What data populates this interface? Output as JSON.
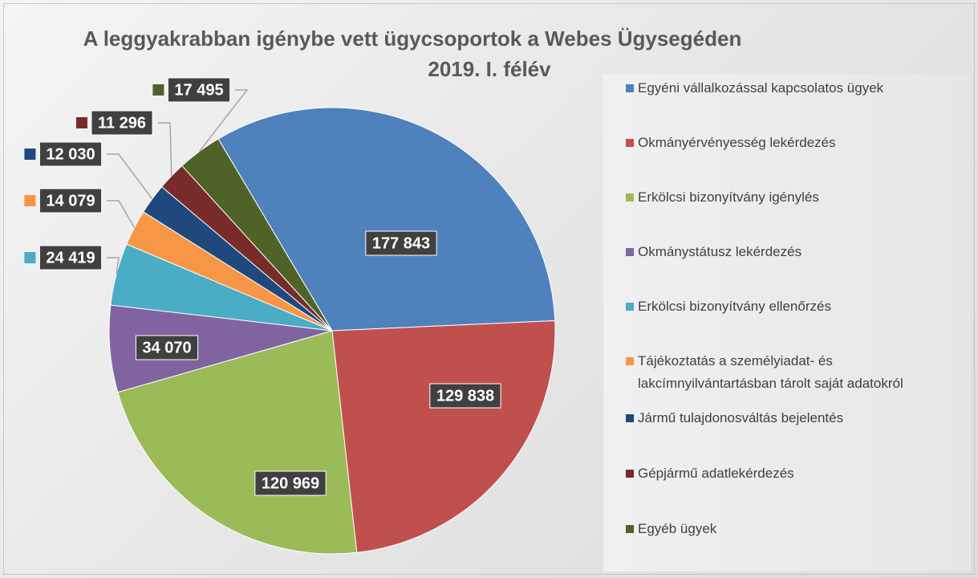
{
  "chart_data": {
    "type": "pie",
    "title": [
      "A leggyakrabban igénybe vett ügycsoportok a Webes Ügysegéden",
      "2019. I. félév"
    ],
    "categories": [
      "Egyéni vállalkozással kapcsolatos ügyek",
      "Okmányérvényesség lekérdezés",
      "Erkölcsi bizonyítvány igénylés",
      "Okmánystátusz lekérdezés",
      "Erkölcsi bizonyítvány ellenőrzés",
      "Tájékoztatás a személyiadat- és lakcímnyilvántartásban tárolt saját adatokról",
      "Jármű tulajdonosváltás bejelentés",
      "Gépjármű adatlekérdezés",
      "Egyéb ügyek"
    ],
    "values": [
      177843,
      129838,
      120969,
      34070,
      24419,
      14079,
      12030,
      11296,
      17495
    ],
    "value_labels": [
      "177 843",
      "129 838",
      "120 969",
      "34 070",
      "24 419",
      "14 079",
      "12 030",
      "11 296",
      "17 495"
    ],
    "colors": [
      "#4f81bd",
      "#c0504d",
      "#9bbb59",
      "#8064a2",
      "#4bacc6",
      "#f79646",
      "#1f497d",
      "#772c2a",
      "#4f6228"
    ],
    "legend": "right"
  }
}
